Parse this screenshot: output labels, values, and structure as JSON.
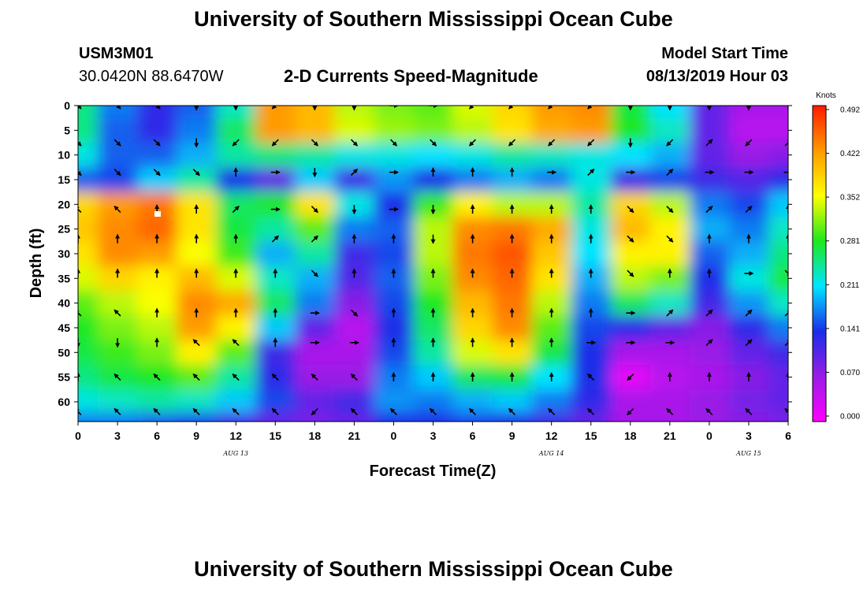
{
  "header": {
    "title": "University of Southern Mississippi Ocean Cube",
    "station_id": "USM3M01",
    "coordinates": "30.0420N 88.6470W",
    "plot_title": "2-D Currents Speed-Magnitude",
    "model_start_label": "Model Start Time",
    "model_start_value": "08/13/2019 Hour 03"
  },
  "footer": {
    "title": "University of Southern Mississippi Ocean Cube"
  },
  "chart_data": {
    "type": "heatmap",
    "title": "2-D Currents Speed-Magnitude",
    "xlabel": "Forecast Time(Z)",
    "ylabel": "Depth (ft)",
    "x_tick_labels": [
      "0",
      "3",
      "6",
      "9",
      "12",
      "15",
      "18",
      "21",
      "0",
      "3",
      "6",
      "9",
      "12",
      "15",
      "18",
      "21",
      "0",
      "3",
      "6"
    ],
    "x_hours": [
      0,
      3,
      6,
      9,
      12,
      15,
      18,
      21,
      24,
      27,
      30,
      33,
      36,
      39,
      42,
      45,
      48,
      51,
      54
    ],
    "day_labels": [
      {
        "text": "AUG 13",
        "hour": 12
      },
      {
        "text": "AUG 14",
        "hour": 36
      },
      {
        "text": "AUG 15",
        "hour": 51
      }
    ],
    "y_tick_labels": [
      "0",
      "5",
      "10",
      "15",
      "20",
      "25",
      "30",
      "35",
      "40",
      "45",
      "50",
      "55",
      "60"
    ],
    "ylim": [
      0,
      64
    ],
    "y_inverted": true,
    "colorbar": {
      "unit": "Knots",
      "min": 0,
      "max": 0.492,
      "tick_values": [
        "0.492",
        "0.422",
        "0.352",
        "0.281",
        "0.211",
        "0.141",
        "0.070",
        "0.000"
      ],
      "colors": [
        "#ff00ff",
        "#9a1ce6",
        "#1a2ee8",
        "#00e6ff",
        "#1ee81e",
        "#ffff00",
        "#ff9900",
        "#ff1a00"
      ]
    },
    "speed_grid": {
      "times": [
        0,
        3,
        6,
        9,
        12,
        15,
        18,
        21,
        24,
        27,
        30,
        33,
        36,
        39,
        42,
        45,
        48,
        51,
        54
      ],
      "depths": [
        0,
        5,
        10,
        15,
        20,
        25,
        30,
        35,
        40,
        45,
        50,
        55,
        60,
        64
      ],
      "values_knots": [
        [
          0.25,
          0.17,
          0.13,
          0.16,
          0.23,
          0.42,
          0.4,
          0.33,
          0.31,
          0.3,
          0.34,
          0.38,
          0.42,
          0.43,
          0.27,
          0.21,
          0.1,
          0.06,
          0.06
        ],
        [
          0.25,
          0.16,
          0.13,
          0.17,
          0.26,
          0.42,
          0.4,
          0.34,
          0.32,
          0.31,
          0.33,
          0.37,
          0.41,
          0.42,
          0.28,
          0.23,
          0.1,
          0.05,
          0.05
        ],
        [
          0.22,
          0.16,
          0.16,
          0.19,
          0.24,
          0.25,
          0.24,
          0.22,
          0.22,
          0.21,
          0.22,
          0.24,
          0.23,
          0.22,
          0.21,
          0.19,
          0.1,
          0.07,
          0.08
        ],
        [
          0.16,
          0.15,
          0.2,
          0.24,
          0.14,
          0.1,
          0.2,
          0.12,
          0.18,
          0.14,
          0.17,
          0.19,
          0.17,
          0.22,
          0.12,
          0.15,
          0.12,
          0.11,
          0.13
        ],
        [
          0.38,
          0.42,
          0.44,
          0.37,
          0.26,
          0.28,
          0.37,
          0.22,
          0.14,
          0.29,
          0.36,
          0.33,
          0.33,
          0.24,
          0.38,
          0.33,
          0.17,
          0.15,
          0.2
        ],
        [
          0.39,
          0.43,
          0.45,
          0.37,
          0.27,
          0.24,
          0.3,
          0.17,
          0.16,
          0.33,
          0.43,
          0.44,
          0.41,
          0.22,
          0.4,
          0.36,
          0.19,
          0.17,
          0.23
        ],
        [
          0.37,
          0.43,
          0.42,
          0.35,
          0.29,
          0.19,
          0.24,
          0.12,
          0.15,
          0.33,
          0.44,
          0.46,
          0.39,
          0.21,
          0.36,
          0.36,
          0.16,
          0.19,
          0.25
        ],
        [
          0.34,
          0.38,
          0.36,
          0.4,
          0.34,
          0.23,
          0.19,
          0.11,
          0.16,
          0.31,
          0.43,
          0.45,
          0.37,
          0.19,
          0.33,
          0.31,
          0.14,
          0.22,
          0.27
        ],
        [
          0.3,
          0.33,
          0.35,
          0.43,
          0.41,
          0.26,
          0.17,
          0.08,
          0.15,
          0.28,
          0.4,
          0.44,
          0.33,
          0.17,
          0.26,
          0.23,
          0.12,
          0.18,
          0.23
        ],
        [
          0.28,
          0.31,
          0.33,
          0.42,
          0.36,
          0.2,
          0.1,
          0.05,
          0.14,
          0.26,
          0.38,
          0.43,
          0.3,
          0.15,
          0.13,
          0.1,
          0.08,
          0.13,
          0.17
        ],
        [
          0.27,
          0.29,
          0.31,
          0.36,
          0.3,
          0.12,
          0.06,
          0.06,
          0.15,
          0.24,
          0.34,
          0.37,
          0.27,
          0.14,
          0.06,
          0.06,
          0.07,
          0.1,
          0.12
        ],
        [
          0.25,
          0.27,
          0.28,
          0.3,
          0.24,
          0.13,
          0.07,
          0.07,
          0.17,
          0.2,
          0.26,
          0.27,
          0.21,
          0.14,
          0.02,
          0.05,
          0.06,
          0.08,
          0.1
        ],
        [
          0.22,
          0.23,
          0.24,
          0.23,
          0.2,
          0.15,
          0.1,
          0.12,
          0.18,
          0.17,
          0.19,
          0.2,
          0.17,
          0.13,
          0.06,
          0.06,
          0.07,
          0.09,
          0.1
        ],
        [
          0.17,
          0.17,
          0.16,
          0.15,
          0.12,
          0.1,
          0.09,
          0.1,
          0.14,
          0.14,
          0.15,
          0.14,
          0.12,
          0.1,
          0.06,
          0.06,
          0.07,
          0.08,
          0.09
        ]
      ]
    },
    "vector_directions_deg": {
      "times": [
        0,
        3,
        6,
        9,
        12,
        15,
        18,
        21,
        24,
        27,
        30,
        33,
        36,
        39,
        42,
        45,
        48,
        51,
        54
      ],
      "depths": [
        0,
        7.5,
        13.5,
        21,
        27,
        34,
        42,
        48,
        55,
        62
      ],
      "values": [
        [
          135,
          135,
          135,
          180,
          180,
          225,
          180,
          180,
          90,
          90,
          225,
          225,
          225,
          225,
          180,
          180,
          180,
          180,
          0
        ],
        [
          135,
          135,
          135,
          180,
          225,
          225,
          135,
          135,
          135,
          135,
          225,
          225,
          225,
          225,
          180,
          225,
          45,
          225,
          45
        ],
        [
          135,
          135,
          135,
          135,
          0,
          90,
          180,
          45,
          90,
          0,
          0,
          0,
          90,
          45,
          90,
          45,
          90,
          90,
          90
        ],
        [
          315,
          315,
          0,
          0,
          45,
          90,
          135,
          180,
          90,
          180,
          0,
          0,
          0,
          0,
          135,
          135,
          45,
          45,
          0
        ],
        [
          0,
          0,
          0,
          0,
          0,
          45,
          45,
          0,
          0,
          180,
          0,
          0,
          0,
          0,
          135,
          135,
          0,
          0,
          0
        ],
        [
          0,
          0,
          0,
          0,
          0,
          0,
          135,
          0,
          0,
          0,
          0,
          0,
          0,
          0,
          135,
          0,
          0,
          90,
          135
        ],
        [
          315,
          315,
          0,
          0,
          0,
          0,
          90,
          135,
          0,
          0,
          0,
          0,
          0,
          0,
          90,
          45,
          45,
          45,
          45
        ],
        [
          180,
          180,
          0,
          315,
          315,
          0,
          90,
          90,
          0,
          0,
          0,
          0,
          0,
          90,
          90,
          90,
          45,
          45,
          45
        ],
        [
          0,
          315,
          315,
          315,
          315,
          315,
          315,
          315,
          0,
          0,
          0,
          0,
          0,
          315,
          225,
          0,
          0,
          0,
          0
        ],
        [
          315,
          315,
          315,
          315,
          315,
          315,
          225,
          315,
          315,
          315,
          315,
          315,
          315,
          315,
          225,
          315,
          315,
          315,
          315
        ]
      ]
    }
  }
}
